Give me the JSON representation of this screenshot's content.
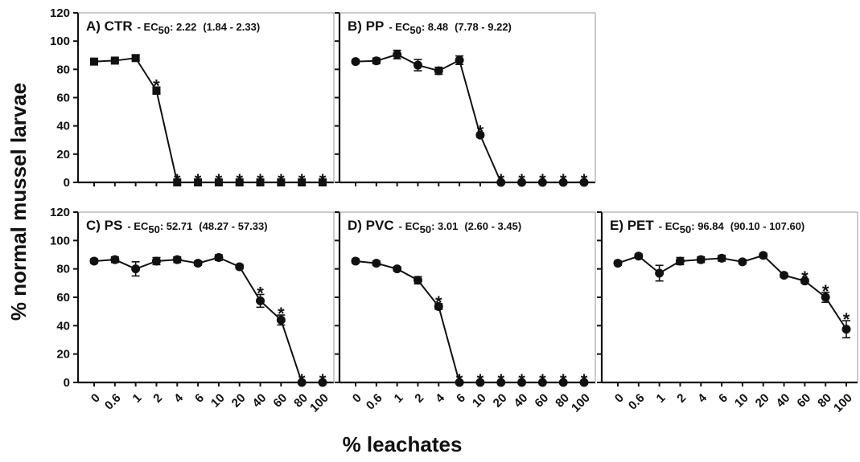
{
  "figure": {
    "ylabel": "% normal mussel larvae",
    "xlabel": "% leachates"
  },
  "chart_data": [
    {
      "type": "line",
      "title": "A) CTR",
      "ec_label": "EC",
      "ec_subscript": "50",
      "ec_value": ": 2.22",
      "ec_ci": "(1.84 - 2.33)",
      "categories": [
        "0",
        "0.6",
        "1",
        "2",
        "4",
        "6",
        "10",
        "20",
        "40",
        "60",
        "80",
        "100"
      ],
      "values": [
        85.5,
        86.2,
        88,
        65,
        0,
        0,
        0,
        0,
        0,
        0,
        0,
        0
      ],
      "errors": [
        1.5,
        1.5,
        1.8,
        2.5,
        0,
        0,
        0,
        0,
        0,
        0,
        0,
        0
      ],
      "significant": [
        false,
        false,
        false,
        true,
        true,
        true,
        true,
        true,
        true,
        true,
        true,
        true
      ],
      "marker": "square",
      "yticks": [
        "0",
        "20",
        "40",
        "60",
        "80",
        "100",
        "120"
      ],
      "ylim": [
        0,
        120
      ],
      "show_yticks": true,
      "show_xticks": false
    },
    {
      "type": "line",
      "title": "B) PP",
      "ec_label": "EC",
      "ec_subscript": "50",
      "ec_value": ": 8.48",
      "ec_ci": "(7.78 - 9.22)",
      "categories": [
        "0",
        "0.6",
        "1",
        "2",
        "4",
        "6",
        "10",
        "20",
        "40",
        "60",
        "80",
        "100"
      ],
      "values": [
        85.5,
        86,
        90.5,
        83,
        79,
        86.5,
        33.5,
        0,
        0,
        0,
        0,
        0
      ],
      "errors": [
        1.5,
        2,
        3,
        4,
        2.5,
        3,
        1.5,
        0,
        0,
        0,
        0,
        0
      ],
      "significant": [
        false,
        false,
        false,
        false,
        false,
        false,
        true,
        true,
        true,
        true,
        true,
        true
      ],
      "marker": "circle",
      "yticks": [
        "0",
        "20",
        "40",
        "60",
        "80",
        "100",
        "120"
      ],
      "ylim": [
        0,
        120
      ],
      "show_yticks": false,
      "show_xticks": false
    },
    {
      "type": "line",
      "title": "C) PS",
      "ec_label": "EC",
      "ec_subscript": "50",
      "ec_value": ": 52.71",
      "ec_ci": "(48.27 - 57.33)",
      "categories": [
        "0",
        "0.6",
        "1",
        "2",
        "4",
        "6",
        "10",
        "20",
        "40",
        "60",
        "80",
        "100"
      ],
      "values": [
        85.5,
        86.5,
        80,
        85.5,
        86.5,
        84,
        88,
        81.5,
        57.5,
        44,
        0,
        0
      ],
      "errors": [
        1.5,
        2,
        5,
        2.5,
        2,
        1.5,
        2,
        1.5,
        4.5,
        3.5,
        0,
        0
      ],
      "significant": [
        false,
        false,
        false,
        false,
        false,
        false,
        false,
        false,
        true,
        true,
        true,
        true
      ],
      "marker": "circle",
      "yticks": [
        "0",
        "20",
        "40",
        "60",
        "80",
        "100",
        "120"
      ],
      "ylim": [
        0,
        120
      ],
      "show_yticks": true,
      "show_xticks": true
    },
    {
      "type": "line",
      "title": "D) PVC",
      "ec_label": "EC",
      "ec_subscript": "50",
      "ec_value": ": 3.01",
      "ec_ci": "(2.60 - 3.45)",
      "categories": [
        "0",
        "0.6",
        "1",
        "2",
        "4",
        "6",
        "10",
        "20",
        "40",
        "60",
        "80",
        "100"
      ],
      "values": [
        85.5,
        84,
        80,
        72,
        53.5,
        0,
        0,
        0,
        0,
        0,
        0,
        0
      ],
      "errors": [
        1.5,
        1.5,
        1.5,
        2.5,
        2,
        0,
        0,
        0,
        0,
        0,
        0,
        0
      ],
      "significant": [
        false,
        false,
        false,
        false,
        true,
        true,
        true,
        true,
        true,
        true,
        true,
        true
      ],
      "marker": "circle",
      "yticks": [
        "0",
        "20",
        "40",
        "60",
        "80",
        "100",
        "120"
      ],
      "ylim": [
        0,
        120
      ],
      "show_yticks": false,
      "show_xticks": true
    },
    {
      "type": "line",
      "title": "E) PET",
      "ec_label": "EC",
      "ec_subscript": "50",
      "ec_value": ": 96.84",
      "ec_ci": "(90.10 - 107.60)",
      "categories": [
        "0",
        "0.6",
        "1",
        "2",
        "4",
        "6",
        "10",
        "20",
        "40",
        "60",
        "80",
        "100"
      ],
      "values": [
        84,
        89,
        77,
        85.5,
        86.5,
        87.5,
        85,
        89.5,
        75.5,
        71.5,
        60,
        37.5
      ],
      "errors": [
        1.5,
        1.5,
        5.5,
        2.5,
        2,
        2,
        1.5,
        1.5,
        1.5,
        1.5,
        3.5,
        6
      ],
      "significant": [
        false,
        false,
        false,
        false,
        false,
        false,
        false,
        false,
        false,
        true,
        true,
        true
      ],
      "marker": "circle",
      "yticks": [
        "0",
        "20",
        "40",
        "60",
        "80",
        "100",
        "120"
      ],
      "ylim": [
        0,
        120
      ],
      "show_yticks": false,
      "show_xticks": true
    }
  ]
}
